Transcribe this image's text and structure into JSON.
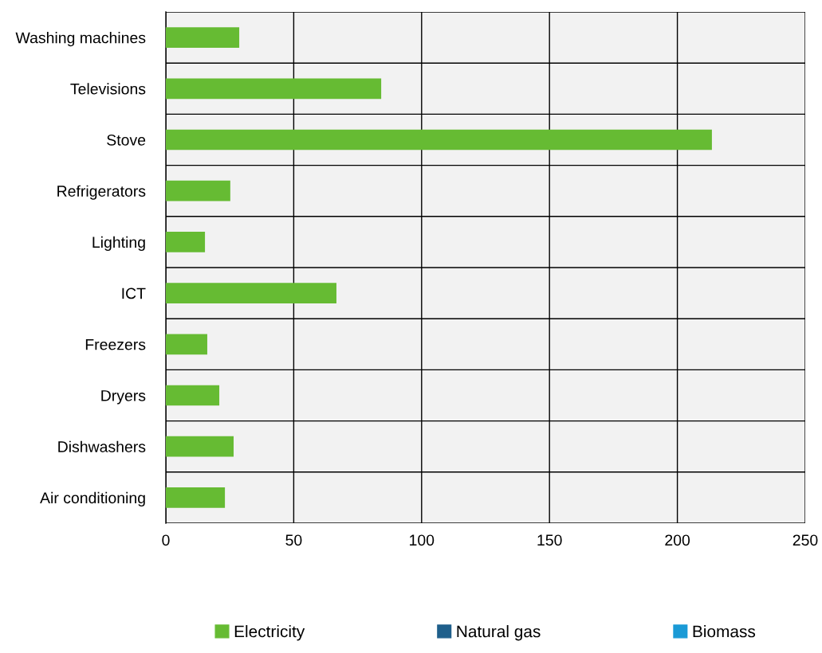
{
  "chart_data": {
    "type": "bar",
    "orientation": "horizontal",
    "categories": [
      "Washing machines",
      "Televisions",
      "Stove",
      "Refrigerators",
      "Lighting",
      "ICT",
      "Freezers",
      "Dryers",
      "Dishwashers",
      "Air conditioning"
    ],
    "series": [
      {
        "name": "Electricity",
        "color": "#66bb33",
        "values": [
          28.7,
          84.2,
          213.5,
          25.2,
          15.3,
          66.7,
          16.2,
          20.9,
          26.5,
          23.1
        ]
      },
      {
        "name": "Natural gas",
        "color": "#1f5f8b",
        "values": [
          0,
          0,
          0,
          0,
          0,
          0,
          0,
          0,
          0,
          0
        ]
      },
      {
        "name": "Biomass",
        "color": "#1a9ad6",
        "values": [
          0,
          0,
          0,
          0,
          0,
          0,
          0,
          0,
          0,
          0
        ]
      }
    ],
    "xlim": [
      0,
      250
    ],
    "xticks": [
      0,
      50,
      100,
      150,
      200,
      250
    ],
    "grid": true,
    "legend": "bottom"
  }
}
